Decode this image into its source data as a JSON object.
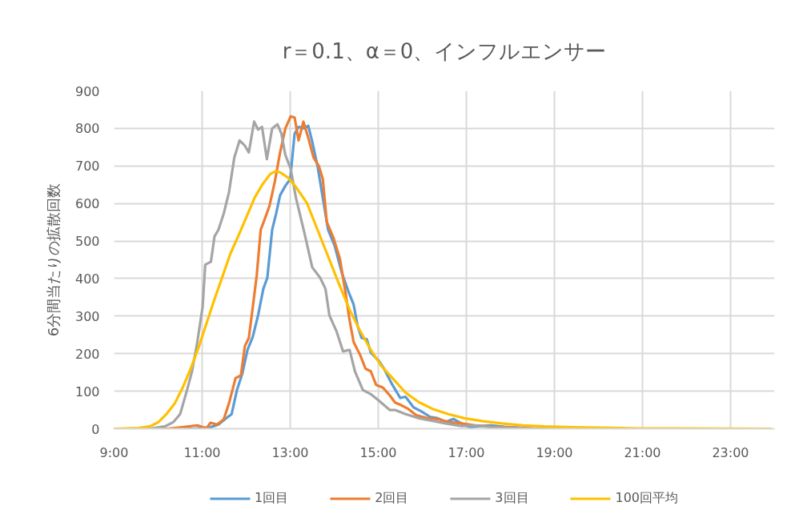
{
  "chart_data": {
    "type": "line",
    "title": "r＝0.1、α＝0、インフルエンサー",
    "ylabel": "6分間当たりの拡散回数",
    "xlim": [
      9,
      24
    ],
    "ylim": [
      0,
      900
    ],
    "xticks": [
      {
        "value": 9,
        "label": "9:00"
      },
      {
        "value": 11,
        "label": "11:00"
      },
      {
        "value": 13,
        "label": "13:00"
      },
      {
        "value": 15,
        "label": "15:00"
      },
      {
        "value": 17,
        "label": "17:00"
      },
      {
        "value": 19,
        "label": "19:00"
      },
      {
        "value": 21,
        "label": "21:00"
      },
      {
        "value": 23,
        "label": "23:00"
      }
    ],
    "yticks": [
      0,
      100,
      200,
      300,
      400,
      500,
      600,
      700,
      800,
      900
    ],
    "grid": true,
    "legend": "bottom",
    "series": [
      {
        "name": "1回目",
        "color": "#5b9bd5",
        "x": [
          9.0,
          10.8,
          11.19,
          11.37,
          11.55,
          11.67,
          11.79,
          11.91,
          12.03,
          12.15,
          12.27,
          12.39,
          12.48,
          12.59,
          12.68,
          12.77,
          12.89,
          13.0,
          13.1,
          13.19,
          13.32,
          13.41,
          13.5,
          13.62,
          13.74,
          13.86,
          14.01,
          14.17,
          14.32,
          14.44,
          14.53,
          14.62,
          14.74,
          14.83,
          15.01,
          15.13,
          15.32,
          15.5,
          15.62,
          15.8,
          15.98,
          16.17,
          16.35,
          16.53,
          16.71,
          16.89,
          17.08,
          17.32,
          17.56,
          17.86,
          18.29
        ],
        "values": [
          0,
          0,
          4,
          11,
          28,
          39,
          103,
          146,
          210,
          245,
          302,
          373,
          402,
          530,
          573,
          622,
          647,
          665,
          786,
          804,
          800,
          807,
          765,
          700,
          615,
          530,
          487,
          416,
          366,
          331,
          274,
          242,
          238,
          203,
          181,
          160,
          117,
          82,
          85,
          57,
          46,
          32,
          28,
          18,
          26,
          14,
          4,
          7,
          9,
          5,
          2
        ]
      },
      {
        "name": "2回目",
        "color": "#ed7d31",
        "x": [
          9.0,
          10.2,
          10.54,
          10.89,
          11.1,
          11.19,
          11.34,
          11.49,
          11.61,
          11.76,
          11.88,
          11.97,
          12.06,
          12.15,
          12.24,
          12.33,
          12.42,
          12.53,
          12.65,
          12.77,
          12.89,
          13.01,
          13.1,
          13.19,
          13.3,
          13.41,
          13.53,
          13.65,
          13.74,
          13.83,
          13.98,
          14.13,
          14.26,
          14.35,
          14.44,
          14.59,
          14.71,
          14.83,
          14.95,
          15.1,
          15.26,
          15.38,
          15.5,
          15.68,
          15.86,
          16.11,
          16.35,
          16.59,
          16.89,
          17.2,
          17.56,
          17.98,
          18.5,
          19.2,
          23.9
        ],
        "values": [
          0,
          0,
          4,
          9,
          1,
          16,
          11,
          25,
          68,
          135,
          142,
          220,
          242,
          324,
          409,
          530,
          558,
          594,
          658,
          736,
          800,
          832,
          829,
          768,
          818,
          775,
          722,
          700,
          665,
          551,
          509,
          452,
          359,
          288,
          231,
          196,
          160,
          153,
          117,
          110,
          89,
          70,
          64,
          53,
          36,
          28,
          26,
          18,
          14,
          9,
          5,
          4,
          1,
          0,
          0
        ]
      },
      {
        "name": "3回目",
        "color": "#a5a5a5",
        "x": [
          9.0,
          9.8,
          10.17,
          10.35,
          10.5,
          10.65,
          10.77,
          10.89,
          11.01,
          11.07,
          11.2,
          11.28,
          11.37,
          11.49,
          11.61,
          11.73,
          11.85,
          11.97,
          12.06,
          12.18,
          12.27,
          12.36,
          12.47,
          12.59,
          12.71,
          12.8,
          12.89,
          13.01,
          13.13,
          13.32,
          13.5,
          13.68,
          13.8,
          13.89,
          14.05,
          14.2,
          14.35,
          14.47,
          14.65,
          14.83,
          15.01,
          15.26,
          15.38,
          15.62,
          15.92,
          16.23,
          16.53,
          16.89,
          17.26,
          17.56,
          18.17,
          18.6,
          23.9
        ],
        "values": [
          0,
          0,
          7,
          18,
          39,
          100,
          153,
          231,
          324,
          437,
          445,
          512,
          530,
          573,
          630,
          722,
          768,
          754,
          736,
          818,
          797,
          804,
          718,
          800,
          811,
          786,
          729,
          693,
          615,
          523,
          430,
          402,
          373,
          302,
          260,
          206,
          210,
          153,
          103,
          92,
          75,
          50,
          50,
          39,
          28,
          21,
          14,
          7,
          9,
          4,
          2,
          0,
          0
        ]
      },
      {
        "name": "100回平均",
        "color": "#ffc000",
        "x": [
          9.0,
          9.56,
          9.83,
          10.01,
          10.19,
          10.38,
          10.56,
          10.74,
          10.92,
          11.1,
          11.28,
          11.46,
          11.64,
          11.83,
          12.01,
          12.19,
          12.37,
          12.55,
          12.67,
          12.77,
          12.95,
          13.13,
          13.38,
          13.62,
          13.86,
          14.1,
          14.35,
          14.59,
          14.83,
          15.07,
          15.32,
          15.62,
          15.92,
          16.23,
          16.59,
          16.95,
          17.38,
          17.8,
          18.29,
          18.77,
          19.38,
          19.98,
          20.89,
          21.8,
          23.9
        ],
        "values": [
          0,
          2,
          7,
          18,
          39,
          68,
          110,
          160,
          217,
          281,
          345,
          405,
          466,
          516,
          565,
          615,
          651,
          679,
          686,
          683,
          669,
          644,
          601,
          530,
          459,
          388,
          317,
          260,
          210,
          167,
          135,
          96,
          71,
          53,
          39,
          28,
          20,
          14,
          9,
          6,
          4,
          3,
          1,
          1,
          0
        ]
      }
    ]
  }
}
